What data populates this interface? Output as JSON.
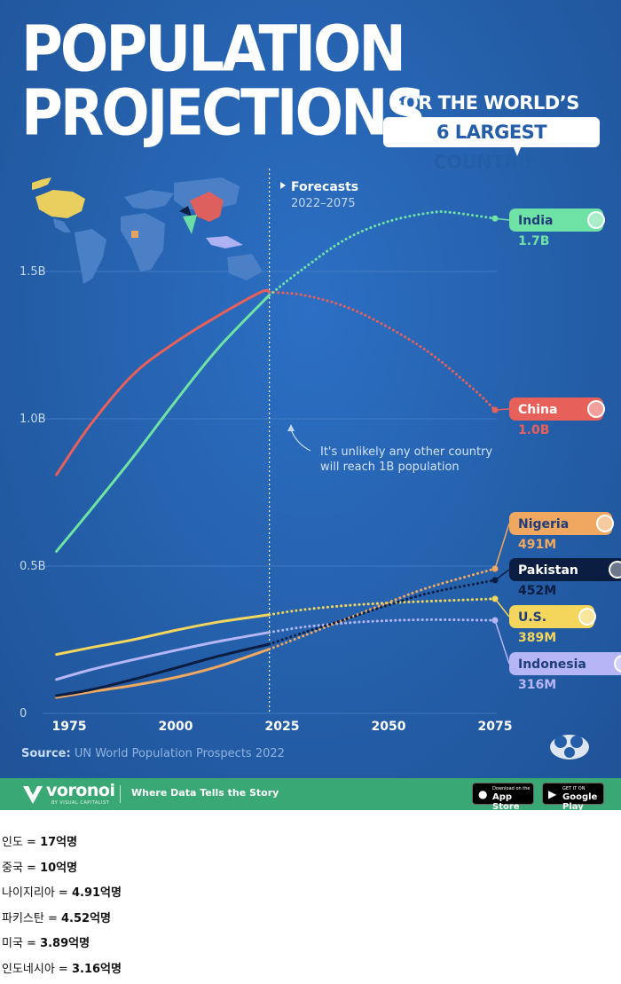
{
  "title_line1": "POPULATION",
  "title_line2": "PROJECTIONS",
  "subtitle_line1": "FOR THE WORLD’S",
  "subtitle_line2": "6 LARGEST COUNTRIES",
  "forecast_label": "Forecasts",
  "forecast_range": "2022–2075",
  "annotation_line1": "It's unlikely any other country",
  "annotation_line2": "will reach 1B population",
  "source_label": "Source:",
  "source_text": "UN World Population Prospects 2022",
  "footer": {
    "brand": "voronoi",
    "brand_sub": "BY VISUAL CAPITALIST",
    "tagline": "Where Data Tells the Story",
    "appstore_small": "Download on the",
    "appstore_big": "App Store",
    "googleplay_small": "GET IT ON",
    "googleplay_big": "Google Play"
  },
  "notes": [
    {
      "label": "인도 = ",
      "value": "17억명"
    },
    {
      "label": "중국 = ",
      "value": "10억명"
    },
    {
      "label": "나이지리아 = ",
      "value": "4.91억명"
    },
    {
      "label": "파키스탄 = ",
      "value": "4.52억명"
    },
    {
      "label": "미국 = ",
      "value": "3.89억명"
    },
    {
      "label": "인도네시아 = ",
      "value": "3.16억명"
    }
  ],
  "chart_data": {
    "type": "line",
    "xlim": [
      1970,
      2080
    ],
    "ylim": [
      0,
      1.9
    ],
    "xticks": [
      "1975",
      "2000",
      "2025",
      "2050",
      "2075"
    ],
    "xtick_values": [
      1975,
      2000,
      2025,
      2050,
      2075
    ],
    "yticks": [
      "0",
      "0.5B",
      "1.0B",
      "1.5B"
    ],
    "ytick_values": [
      0,
      0.5,
      1.0,
      1.5
    ],
    "forecast_start": 2022,
    "series": [
      {
        "name": "India",
        "end_label": "1.7B",
        "color": "#6fe3a5",
        "historical": [
          [
            1972,
            0.55
          ],
          [
            1980,
            0.69
          ],
          [
            1990,
            0.87
          ],
          [
            2000,
            1.06
          ],
          [
            2010,
            1.24
          ],
          [
            2022,
            1.42
          ]
        ],
        "forecast": [
          [
            2022,
            1.42
          ],
          [
            2030,
            1.51
          ],
          [
            2040,
            1.61
          ],
          [
            2050,
            1.67
          ],
          [
            2060,
            1.7
          ],
          [
            2065,
            1.7
          ],
          [
            2075,
            1.68
          ]
        ]
      },
      {
        "name": "China",
        "end_label": "1.0B",
        "color": "#e8605a",
        "historical": [
          [
            1972,
            0.81
          ],
          [
            1980,
            0.98
          ],
          [
            1990,
            1.15
          ],
          [
            2000,
            1.26
          ],
          [
            2010,
            1.35
          ],
          [
            2020,
            1.43
          ],
          [
            2022,
            1.43
          ]
        ],
        "forecast": [
          [
            2022,
            1.43
          ],
          [
            2030,
            1.42
          ],
          [
            2040,
            1.38
          ],
          [
            2050,
            1.31
          ],
          [
            2060,
            1.22
          ],
          [
            2070,
            1.1
          ],
          [
            2075,
            1.03
          ]
        ]
      },
      {
        "name": "Nigeria",
        "end_label": "491M",
        "color": "#f0a860",
        "historical": [
          [
            1972,
            0.054
          ],
          [
            1980,
            0.073
          ],
          [
            1990,
            0.095
          ],
          [
            2000,
            0.122
          ],
          [
            2010,
            0.159
          ],
          [
            2022,
            0.218
          ]
        ],
        "forecast": [
          [
            2022,
            0.218
          ],
          [
            2030,
            0.263
          ],
          [
            2040,
            0.32
          ],
          [
            2050,
            0.377
          ],
          [
            2060,
            0.43
          ],
          [
            2075,
            0.491
          ]
        ]
      },
      {
        "name": "Pakistan",
        "end_label": "452M",
        "color": "#0b1d40",
        "historical": [
          [
            1972,
            0.06
          ],
          [
            1980,
            0.08
          ],
          [
            1990,
            0.115
          ],
          [
            2000,
            0.154
          ],
          [
            2010,
            0.194
          ],
          [
            2022,
            0.235
          ]
        ],
        "forecast": [
          [
            2022,
            0.235
          ],
          [
            2030,
            0.274
          ],
          [
            2040,
            0.32
          ],
          [
            2050,
            0.368
          ],
          [
            2060,
            0.41
          ],
          [
            2075,
            0.452
          ]
        ]
      },
      {
        "name": "U.S.",
        "end_label": "389M",
        "color": "#f3d65b",
        "historical": [
          [
            1972,
            0.2
          ],
          [
            1980,
            0.223
          ],
          [
            1990,
            0.25
          ],
          [
            2000,
            0.282
          ],
          [
            2010,
            0.31
          ],
          [
            2022,
            0.335
          ]
        ],
        "forecast": [
          [
            2022,
            0.335
          ],
          [
            2030,
            0.352
          ],
          [
            2040,
            0.366
          ],
          [
            2050,
            0.375
          ],
          [
            2060,
            0.381
          ],
          [
            2075,
            0.389
          ]
        ]
      },
      {
        "name": "Indonesia",
        "end_label": "316M",
        "color": "#b6b6f7",
        "historical": [
          [
            1972,
            0.115
          ],
          [
            1980,
            0.148
          ],
          [
            1990,
            0.182
          ],
          [
            2000,
            0.214
          ],
          [
            2010,
            0.244
          ],
          [
            2022,
            0.275
          ]
        ],
        "forecast": [
          [
            2022,
            0.275
          ],
          [
            2030,
            0.293
          ],
          [
            2040,
            0.307
          ],
          [
            2050,
            0.315
          ],
          [
            2060,
            0.318
          ],
          [
            2075,
            0.316
          ]
        ]
      }
    ]
  }
}
